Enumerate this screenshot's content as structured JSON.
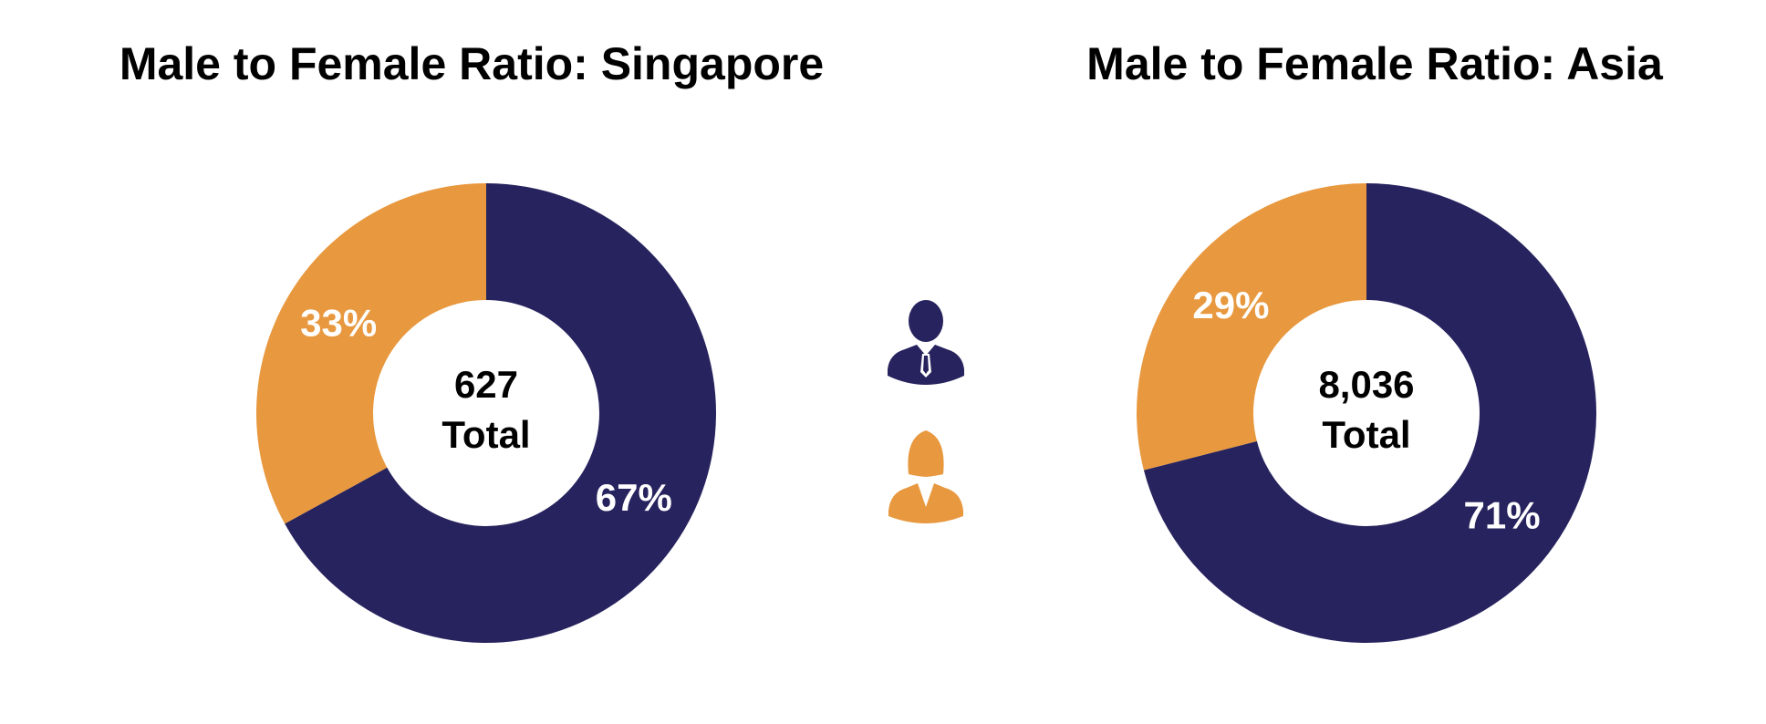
{
  "chart_data": [
    {
      "type": "pie",
      "title": "Male to Female Ratio: Singapore",
      "values": [
        67,
        33
      ],
      "value_labels": [
        "67%",
        "33%"
      ],
      "colors": [
        "#27235e",
        "#e8983e"
      ],
      "total": 627,
      "total_caption": "Total"
    },
    {
      "type": "pie",
      "title": "Male to Female Ratio: Asia",
      "values": [
        71,
        29
      ],
      "value_labels": [
        "71%",
        "29%"
      ],
      "colors": [
        "#27235e",
        "#e8983e"
      ],
      "total": {
        "value": 8036,
        "label": "8,036"
      },
      "total_caption": "Total"
    }
  ]
}
